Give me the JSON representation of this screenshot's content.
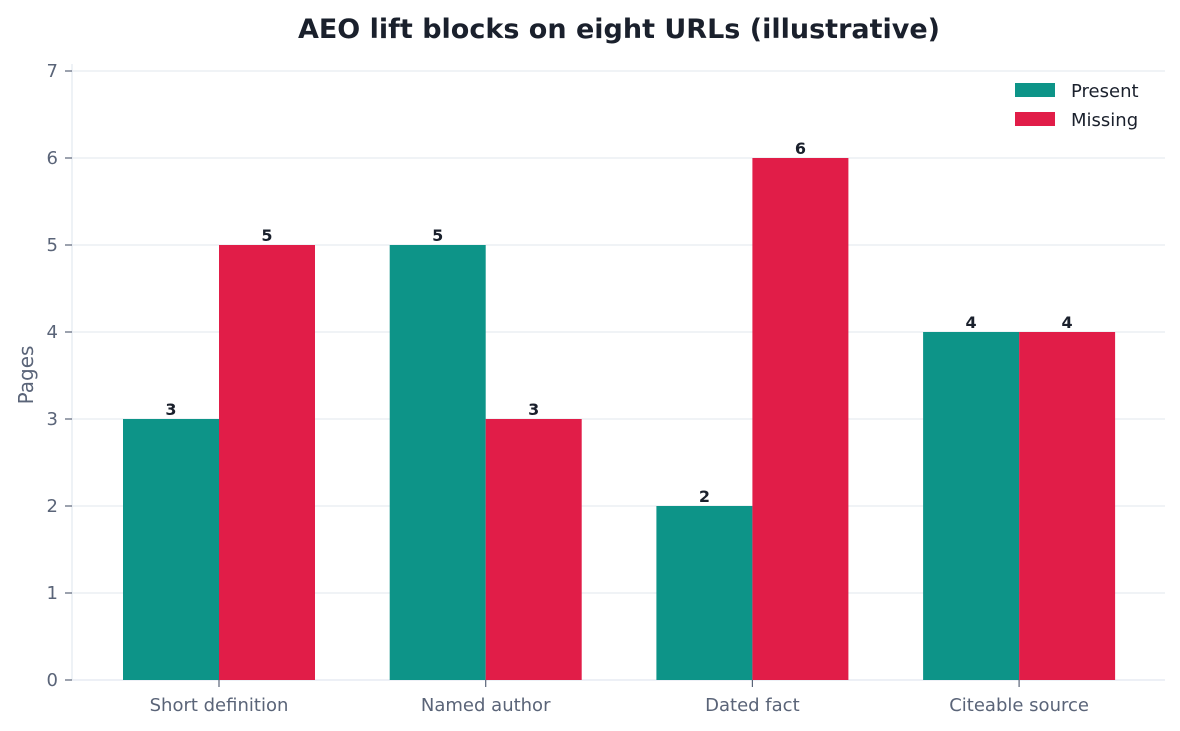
{
  "chart_data": {
    "type": "bar",
    "title": "AEO lift blocks on eight URLs (illustrative)",
    "xlabel": "",
    "ylabel": "Pages",
    "ylim": [
      0,
      7
    ],
    "yticks": [
      0,
      1,
      2,
      3,
      4,
      5,
      6,
      7
    ],
    "categories": [
      "Short definition",
      "Named author",
      "Dated fact",
      "Citeable source"
    ],
    "series": [
      {
        "name": "Present",
        "color": "#0d9488",
        "values": [
          3,
          5,
          2,
          4
        ]
      },
      {
        "name": "Missing",
        "color": "#e11d48",
        "values": [
          5,
          3,
          6,
          4
        ]
      }
    ],
    "grid": "horizontal",
    "legend_position": "top-right"
  }
}
